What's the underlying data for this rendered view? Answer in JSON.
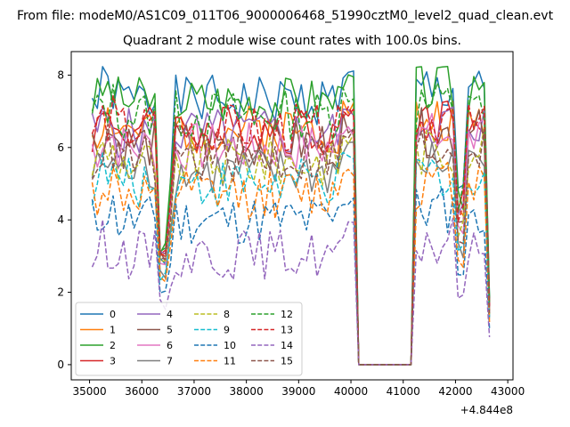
{
  "suptitle": "From file: modeM0/AS1C09_011T06_9000006468_51990cztM0_level2_quad_clean.evt",
  "chart_data": {
    "type": "line",
    "title": "Quadrant 2 module wise count rates with 100.0s bins.",
    "xlabel": "",
    "ylabel": "",
    "x_offset_label": "+4.844e8",
    "xlim": [
      34650,
      43100
    ],
    "ylim": [
      -0.42,
      8.65
    ],
    "xticks": [
      35000,
      36000,
      37000,
      38000,
      39000,
      40000,
      41000,
      42000,
      43000
    ],
    "xtick_labels": [
      "35000",
      "36000",
      "37000",
      "38000",
      "39000",
      "40000",
      "41000",
      "42000",
      "43000"
    ],
    "yticks": [
      0,
      2,
      4,
      6,
      8
    ],
    "ytick_labels": [
      "0",
      "2",
      "4",
      "6",
      "8"
    ],
    "grid": false,
    "legend": {
      "placement": "lower-left",
      "columns": 4
    },
    "x_segments": [
      {
        "start": 35050,
        "end": 40150,
        "step": 100
      },
      {
        "start": 40250,
        "end": 41150,
        "step": 100
      },
      {
        "start": 41150,
        "end": 42650,
        "step": 100
      }
    ],
    "series": [
      {
        "name": "0",
        "color": "#1f77b4",
        "dash": "solid",
        "base": 7.3,
        "dip": 0.38,
        "seed": 1
      },
      {
        "name": "1",
        "color": "#ff7f0e",
        "dash": "solid",
        "base": 6.5,
        "dip": 0.42,
        "seed": 2
      },
      {
        "name": "2",
        "color": "#2ca02c",
        "dash": "solid",
        "base": 7.3,
        "dip": 0.42,
        "seed": 3
      },
      {
        "name": "3",
        "color": "#d62728",
        "dash": "solid",
        "base": 6.5,
        "dip": 0.45,
        "seed": 4
      },
      {
        "name": "4",
        "color": "#9467bd",
        "dash": "solid",
        "base": 6.4,
        "dip": 0.45,
        "seed": 5
      },
      {
        "name": "5",
        "color": "#8c564b",
        "dash": "solid",
        "base": 6.1,
        "dip": 0.45,
        "seed": 6
      },
      {
        "name": "6",
        "color": "#e377c2",
        "dash": "solid",
        "base": 6.0,
        "dip": 0.45,
        "seed": 7
      },
      {
        "name": "7",
        "color": "#7f7f7f",
        "dash": "solid",
        "base": 5.3,
        "dip": 0.45,
        "seed": 8
      },
      {
        "name": "8",
        "color": "#bcbd22",
        "dash": "dashed",
        "base": 5.6,
        "dip": 0.45,
        "seed": 9
      },
      {
        "name": "9",
        "color": "#17becf",
        "dash": "dashed",
        "base": 5.0,
        "dip": 0.45,
        "seed": 10
      },
      {
        "name": "10",
        "color": "#1f77b4",
        "dash": "dashed",
        "base": 4.0,
        "dip": 0.45,
        "seed": 11
      },
      {
        "name": "11",
        "color": "#ff7f0e",
        "dash": "dashed",
        "base": 4.7,
        "dip": 0.45,
        "seed": 12
      },
      {
        "name": "12",
        "color": "#2ca02c",
        "dash": "dashed",
        "base": 6.9,
        "dip": 0.45,
        "seed": 13
      },
      {
        "name": "13",
        "color": "#d62728",
        "dash": "dashed",
        "base": 6.5,
        "dip": 0.45,
        "seed": 14
      },
      {
        "name": "14",
        "color": "#9467bd",
        "dash": "dashed",
        "base": 3.05,
        "dip": 0.5,
        "seed": 15
      },
      {
        "name": "15",
        "color": "#8c564b",
        "dash": "dashed",
        "base": 5.7,
        "dip": 0.45,
        "seed": 16
      }
    ]
  }
}
